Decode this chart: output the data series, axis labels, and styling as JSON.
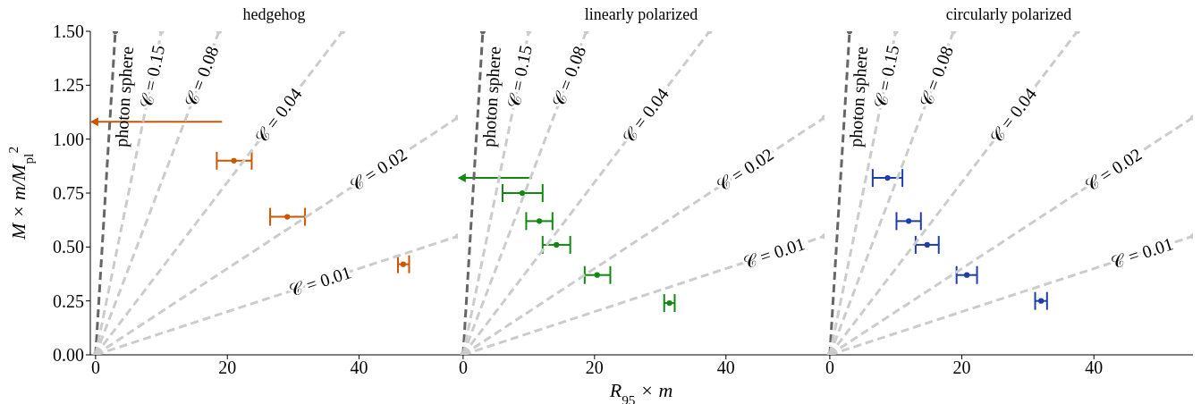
{
  "chart_data": [
    {
      "type": "scatter",
      "title": "hedgehog",
      "ylabel": "M × m/M$_{pl}$$^{2}$",
      "xlim": [
        -0.8,
        55
      ],
      "xticks": [
        0,
        20,
        40
      ],
      "ylim": [
        0,
        1.5
      ],
      "yticks": [
        {
          "value": 0,
          "label": "0.00"
        },
        {
          "value": 0.25,
          "label": "0.25"
        },
        {
          "value": 0.5,
          "label": "0.50"
        },
        {
          "value": 0.75,
          "label": "0.75"
        },
        {
          "value": 1,
          "label": "1.00"
        },
        {
          "value": 1.25,
          "label": "1.25"
        },
        {
          "value": 1.5,
          "label": "1.50"
        }
      ],
      "tick_labels": true,
      "marker": "none",
      "series": [
        {
          "type": "line",
          "name": "photon sphere",
          "color": "#666666",
          "line_style": "dashed",
          "x": [
            0,
            3
          ],
          "values": [
            0,
            1.5
          ]
        },
        {
          "type": "line",
          "name": "𝒞 = 0.15",
          "color": "#cccccc",
          "line_style": "dashed",
          "x": [
            0,
            10
          ],
          "values": [
            0,
            1.5
          ]
        },
        {
          "type": "line",
          "name": "𝒞 = 0.08",
          "color": "#cccccc",
          "line_style": "dashed",
          "x": [
            0,
            18.75
          ],
          "values": [
            0,
            1.5
          ]
        },
        {
          "type": "line",
          "name": "𝒞 = 0.04",
          "color": "#cccccc",
          "line_style": "dashed",
          "x": [
            0,
            37.5
          ],
          "values": [
            0,
            1.5
          ]
        },
        {
          "type": "line",
          "name": "𝒞 = 0.02",
          "color": "#cccccc",
          "line_style": "dashed",
          "x": [
            0,
            55
          ],
          "values": [
            0,
            1.1
          ]
        },
        {
          "type": "line",
          "name": "𝒞 = 0.01",
          "color": "#cccccc",
          "line_style": "dashed",
          "x": [
            0,
            55
          ],
          "values": [
            0,
            0.55
          ]
        },
        {
          "color": "#cc5500",
          "x": [
            21,
            29.1,
            46.7
          ],
          "values": [
            0.9,
            0.64,
            0.42
          ],
          "xerrors": [
            [
              18.4,
              23.7
            ],
            [
              26.5,
              31.8
            ],
            [
              45.9,
              47.6
            ]
          ]
        },
        {
          "color": "#cc5500",
          "marker": "triangle",
          "x": [
            0
          ],
          "values": [
            1.08
          ],
          "xerrors": [
            [
              0,
              19.2
            ]
          ]
        }
      ]
    },
    {
      "type": "scatter",
      "title": "linearly polarized",
      "xlabel": "R$_{95}$ × m",
      "xlim": [
        -0.8,
        55
      ],
      "xticks": [
        0,
        20,
        40
      ],
      "ylim": [
        0,
        1.5
      ],
      "yticks": [
        {
          "value": 0,
          "label": null
        },
        {
          "value": 0.25,
          "label": null
        },
        {
          "value": 0.5,
          "label": null
        },
        {
          "value": 0.75,
          "label": null
        },
        {
          "value": 1,
          "label": null
        },
        {
          "value": 1.25,
          "label": null
        },
        {
          "value": 1.5,
          "label": null
        }
      ],
      "tick_labels": "x",
      "marker": "none",
      "series": [
        {
          "type": "line",
          "name": "photon sphere",
          "color": "#666666",
          "line_style": "dashed",
          "x": [
            0,
            3
          ],
          "values": [
            0,
            1.5
          ]
        },
        {
          "type": "line",
          "name": "𝒞 = 0.15",
          "color": "#cccccc",
          "line_style": "dashed",
          "x": [
            0,
            10
          ],
          "values": [
            0,
            1.5
          ]
        },
        {
          "type": "line",
          "name": "𝒞 = 0.08",
          "color": "#cccccc",
          "line_style": "dashed",
          "x": [
            0,
            18.75
          ],
          "values": [
            0,
            1.5
          ]
        },
        {
          "type": "line",
          "name": "𝒞 = 0.04",
          "color": "#cccccc",
          "line_style": "dashed",
          "x": [
            0,
            37.5
          ],
          "values": [
            0,
            1.5
          ]
        },
        {
          "type": "line",
          "name": "𝒞 = 0.02",
          "color": "#cccccc",
          "line_style": "dashed",
          "x": [
            0,
            55
          ],
          "values": [
            0,
            1.1
          ]
        },
        {
          "type": "line",
          "name": "𝒞 = 0.01",
          "color": "#cccccc",
          "line_style": "dashed",
          "x": [
            0,
            55
          ],
          "values": [
            0,
            0.55
          ]
        },
        {
          "color": "#118811",
          "x": [
            9,
            11.6,
            14.2,
            20.4,
            31.4
          ],
          "values": [
            0.75,
            0.62,
            0.51,
            0.37,
            0.24
          ],
          "xerrors": [
            [
              6,
              12.1
            ],
            [
              9.6,
              13.6
            ],
            [
              12.1,
              16.3
            ],
            [
              18.5,
              22.4
            ],
            [
              30.6,
              32.2
            ]
          ]
        },
        {
          "color": "#118811",
          "marker": "triangle",
          "x": [
            0
          ],
          "values": [
            0.82
          ],
          "xerrors": [
            [
              0,
              10.5
            ]
          ]
        }
      ]
    },
    {
      "type": "scatter",
      "title": "circularly polarized",
      "xlim": [
        -0.8,
        55
      ],
      "xticks": [
        0,
        20,
        40
      ],
      "ylim": [
        0,
        1.5
      ],
      "yticks": [
        {
          "value": 0,
          "label": null
        },
        {
          "value": 0.25,
          "label": null
        },
        {
          "value": 0.5,
          "label": null
        },
        {
          "value": 0.75,
          "label": null
        },
        {
          "value": 1,
          "label": null
        },
        {
          "value": 1.25,
          "label": null
        },
        {
          "value": 1.5,
          "label": null
        }
      ],
      "tick_labels": "x",
      "marker": "none",
      "series": [
        {
          "type": "line",
          "name": "photon sphere",
          "color": "#666666",
          "line_style": "dashed",
          "x": [
            0,
            3
          ],
          "values": [
            0,
            1.5
          ]
        },
        {
          "type": "line",
          "name": "𝒞 = 0.15",
          "color": "#cccccc",
          "line_style": "dashed",
          "x": [
            0,
            10
          ],
          "values": [
            0,
            1.5
          ]
        },
        {
          "type": "line",
          "name": "𝒞 = 0.08",
          "color": "#cccccc",
          "line_style": "dashed",
          "x": [
            0,
            18.75
          ],
          "values": [
            0,
            1.5
          ]
        },
        {
          "type": "line",
          "name": "𝒞 = 0.04",
          "color": "#cccccc",
          "line_style": "dashed",
          "x": [
            0,
            37.5
          ],
          "values": [
            0,
            1.5
          ]
        },
        {
          "type": "line",
          "name": "𝒞 = 0.02",
          "color": "#cccccc",
          "line_style": "dashed",
          "x": [
            0,
            55
          ],
          "values": [
            0,
            1.1
          ]
        },
        {
          "type": "line",
          "name": "𝒞 = 0.01",
          "color": "#cccccc",
          "line_style": "dashed",
          "x": [
            0,
            55
          ],
          "values": [
            0,
            0.55
          ]
        },
        {
          "color": "#1f3fa8",
          "x": [
            8.75,
            11.95,
            14.75,
            20.75,
            32
          ],
          "values": [
            0.82,
            0.62,
            0.51,
            0.37,
            0.25
          ],
          "xerrors": [
            [
              6.5,
              11
            ],
            [
              10.1,
              13.8
            ],
            [
              13,
              16.5
            ],
            [
              19.2,
              22.3
            ],
            [
              31.1,
              32.9
            ]
          ]
        }
      ]
    }
  ]
}
